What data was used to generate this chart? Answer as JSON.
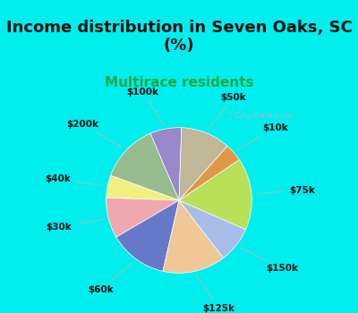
{
  "title": "Income distribution in Seven Oaks, SC\n(%)",
  "subtitle": "Multirace residents",
  "watermark": "City-Data.com",
  "bg_cyan": "#00EEEE",
  "bg_chart_color": "#d8f0e8",
  "labels": [
    "$100k",
    "$200k",
    "$40k",
    "$30k",
    "$60k",
    "$125k",
    "$150k",
    "$75k",
    "$10k",
    "$50k"
  ],
  "values": [
    7,
    13,
    5,
    9,
    13,
    14,
    8,
    16,
    4,
    11
  ],
  "colors": [
    "#9988cc",
    "#98bc90",
    "#f0f080",
    "#f0a8b0",
    "#6878c8",
    "#f0c898",
    "#a8bce8",
    "#b8e058",
    "#e09848",
    "#c0b898"
  ],
  "title_fontsize": 13,
  "subtitle_fontsize": 11,
  "subtitle_color": "#22a844",
  "label_fontsize": 7.5,
  "startangle": 88,
  "figsize": [
    4.0,
    3.5
  ],
  "dpi": 100
}
